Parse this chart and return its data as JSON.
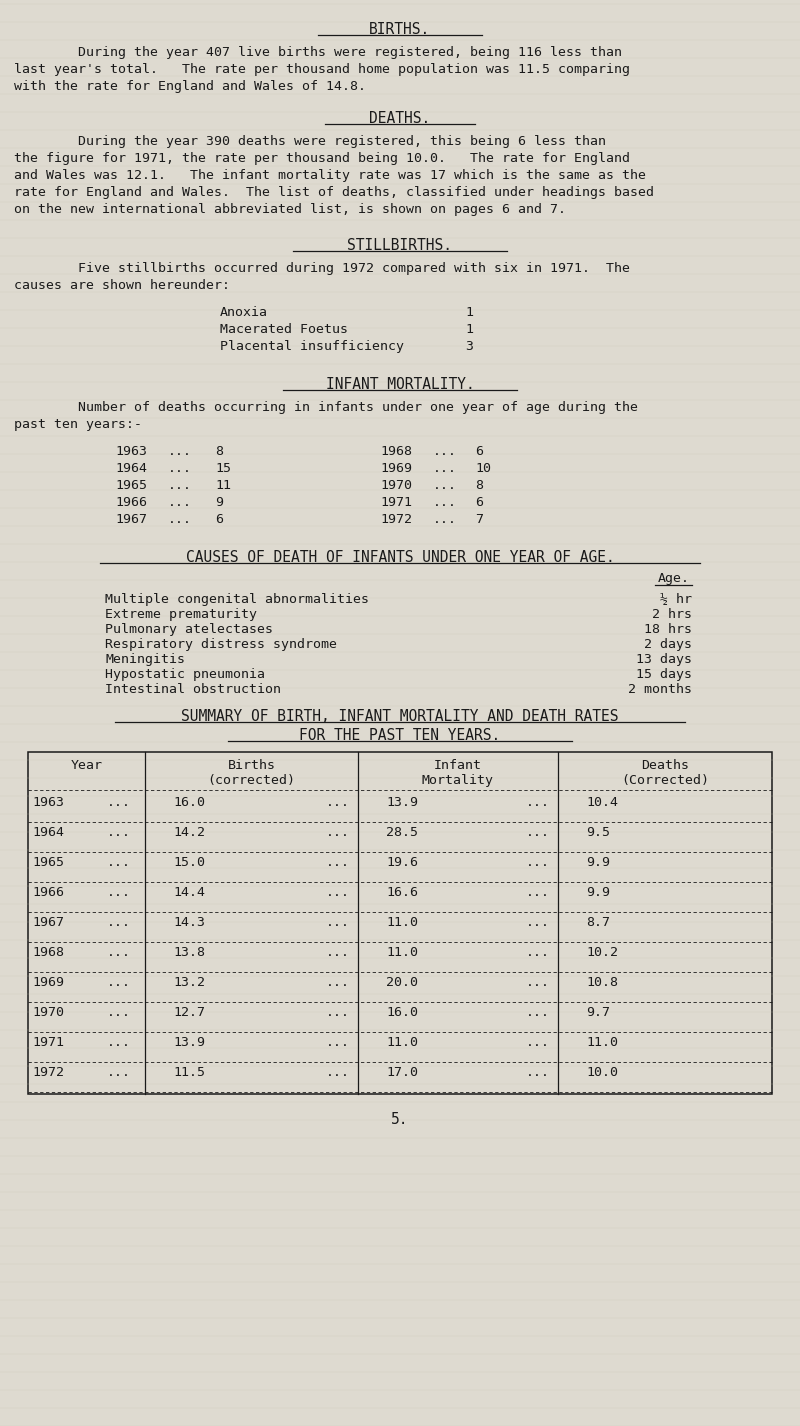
{
  "bg_color": "#dedad0",
  "text_color": "#1a1a1a",
  "font_family": "DejaVu Sans Mono",
  "title_births": "BIRTHS.",
  "para_births_lines": [
    "        During the year 407 live births were registered, being 116 less than",
    "last year's total.   The rate per thousand home population was 11.5 comparing",
    "with the rate for England and Wales of 14.8."
  ],
  "title_deaths": "DEATHS.",
  "para_deaths_lines": [
    "        During the year 390 deaths were registered, this being 6 less than",
    "the figure for 1971, the rate per thousand being 10.0.   The rate for England",
    "and Wales was 12.1.   The infant mortality rate was 17 which is the same as the",
    "rate for England and Wales.  The list of deaths, classified under headings based",
    "on the new international abbreviated list, is shown on pages 6 and 7."
  ],
  "title_stillbirths": "STILLBIRTHS.",
  "para_stillbirths_lines": [
    "        Five stillbirths occurred during 1972 compared with six in 1971.  The",
    "causes are shown hereunder:"
  ],
  "stillbirths_items": [
    [
      "Anoxia",
      "1"
    ],
    [
      "Macerated Foetus",
      "1"
    ],
    [
      "Placental insufficiency",
      "3"
    ]
  ],
  "title_infant": "INFANT MORTALITY.",
  "para_infant_lines": [
    "        Number of deaths occurring in infants under one year of age during the",
    "past ten years:-"
  ],
  "infant_data_left": [
    [
      "1963",
      "...",
      "8"
    ],
    [
      "1964",
      "...",
      "15"
    ],
    [
      "1965",
      "...",
      "11"
    ],
    [
      "1966",
      "...",
      "9"
    ],
    [
      "1967",
      "...",
      "6"
    ]
  ],
  "infant_data_right": [
    [
      "1968",
      "...",
      "6"
    ],
    [
      "1969",
      "...",
      "10"
    ],
    [
      "1970",
      "...",
      "8"
    ],
    [
      "1971",
      "...",
      "6"
    ],
    [
      "1972",
      "...",
      "7"
    ]
  ],
  "title_causes": "CAUSES OF DEATH OF INFANTS UNDER ONE YEAR OF AGE.",
  "causes_age_header": "Age.",
  "causes_items": [
    [
      "Multiple congenital abnormalities",
      "½ hr"
    ],
    [
      "Extreme prematurity",
      "2 hrs"
    ],
    [
      "Pulmonary atelectases",
      "18 hrs"
    ],
    [
      "Respiratory distress syndrome",
      "2 days"
    ],
    [
      "Meningitis",
      "13 days"
    ],
    [
      "Hypostatic pneumonia",
      "15 days"
    ],
    [
      "Intestinal obstruction",
      "2 months"
    ]
  ],
  "title_summary1": "SUMMARY OF BIRTH, INFANT MORTALITY AND DEATH RATES",
  "title_summary2": "FOR THE PAST TEN YEARS.",
  "table_data": [
    [
      "1963",
      "...",
      "16.0",
      "...",
      "13.9",
      "...",
      "10.4"
    ],
    [
      "1964",
      "...",
      "14.2",
      "...",
      "28.5",
      "...",
      "9.5"
    ],
    [
      "1965",
      "...",
      "15.0",
      "...",
      "19.6",
      "...",
      "9.9"
    ],
    [
      "1966",
      "...",
      "14.4",
      "...",
      "16.6",
      "...",
      "9.9"
    ],
    [
      "1967",
      "...",
      "14.3",
      "...",
      "11.0",
      "...",
      "8.7"
    ],
    [
      "1968",
      "...",
      "13.8",
      "...",
      "11.0",
      "...",
      "10.2"
    ],
    [
      "1969",
      "...",
      "13.2",
      "...",
      "20.0",
      "...",
      "10.8"
    ],
    [
      "1970",
      "...",
      "12.7",
      "...",
      "16.0",
      "...",
      "9.7"
    ],
    [
      "1971",
      "...",
      "13.9",
      "...",
      "11.0",
      "...",
      "11.0"
    ],
    [
      "1972",
      "...",
      "11.5",
      "...",
      "17.0",
      "...",
      "10.0"
    ]
  ],
  "page_number": "5."
}
